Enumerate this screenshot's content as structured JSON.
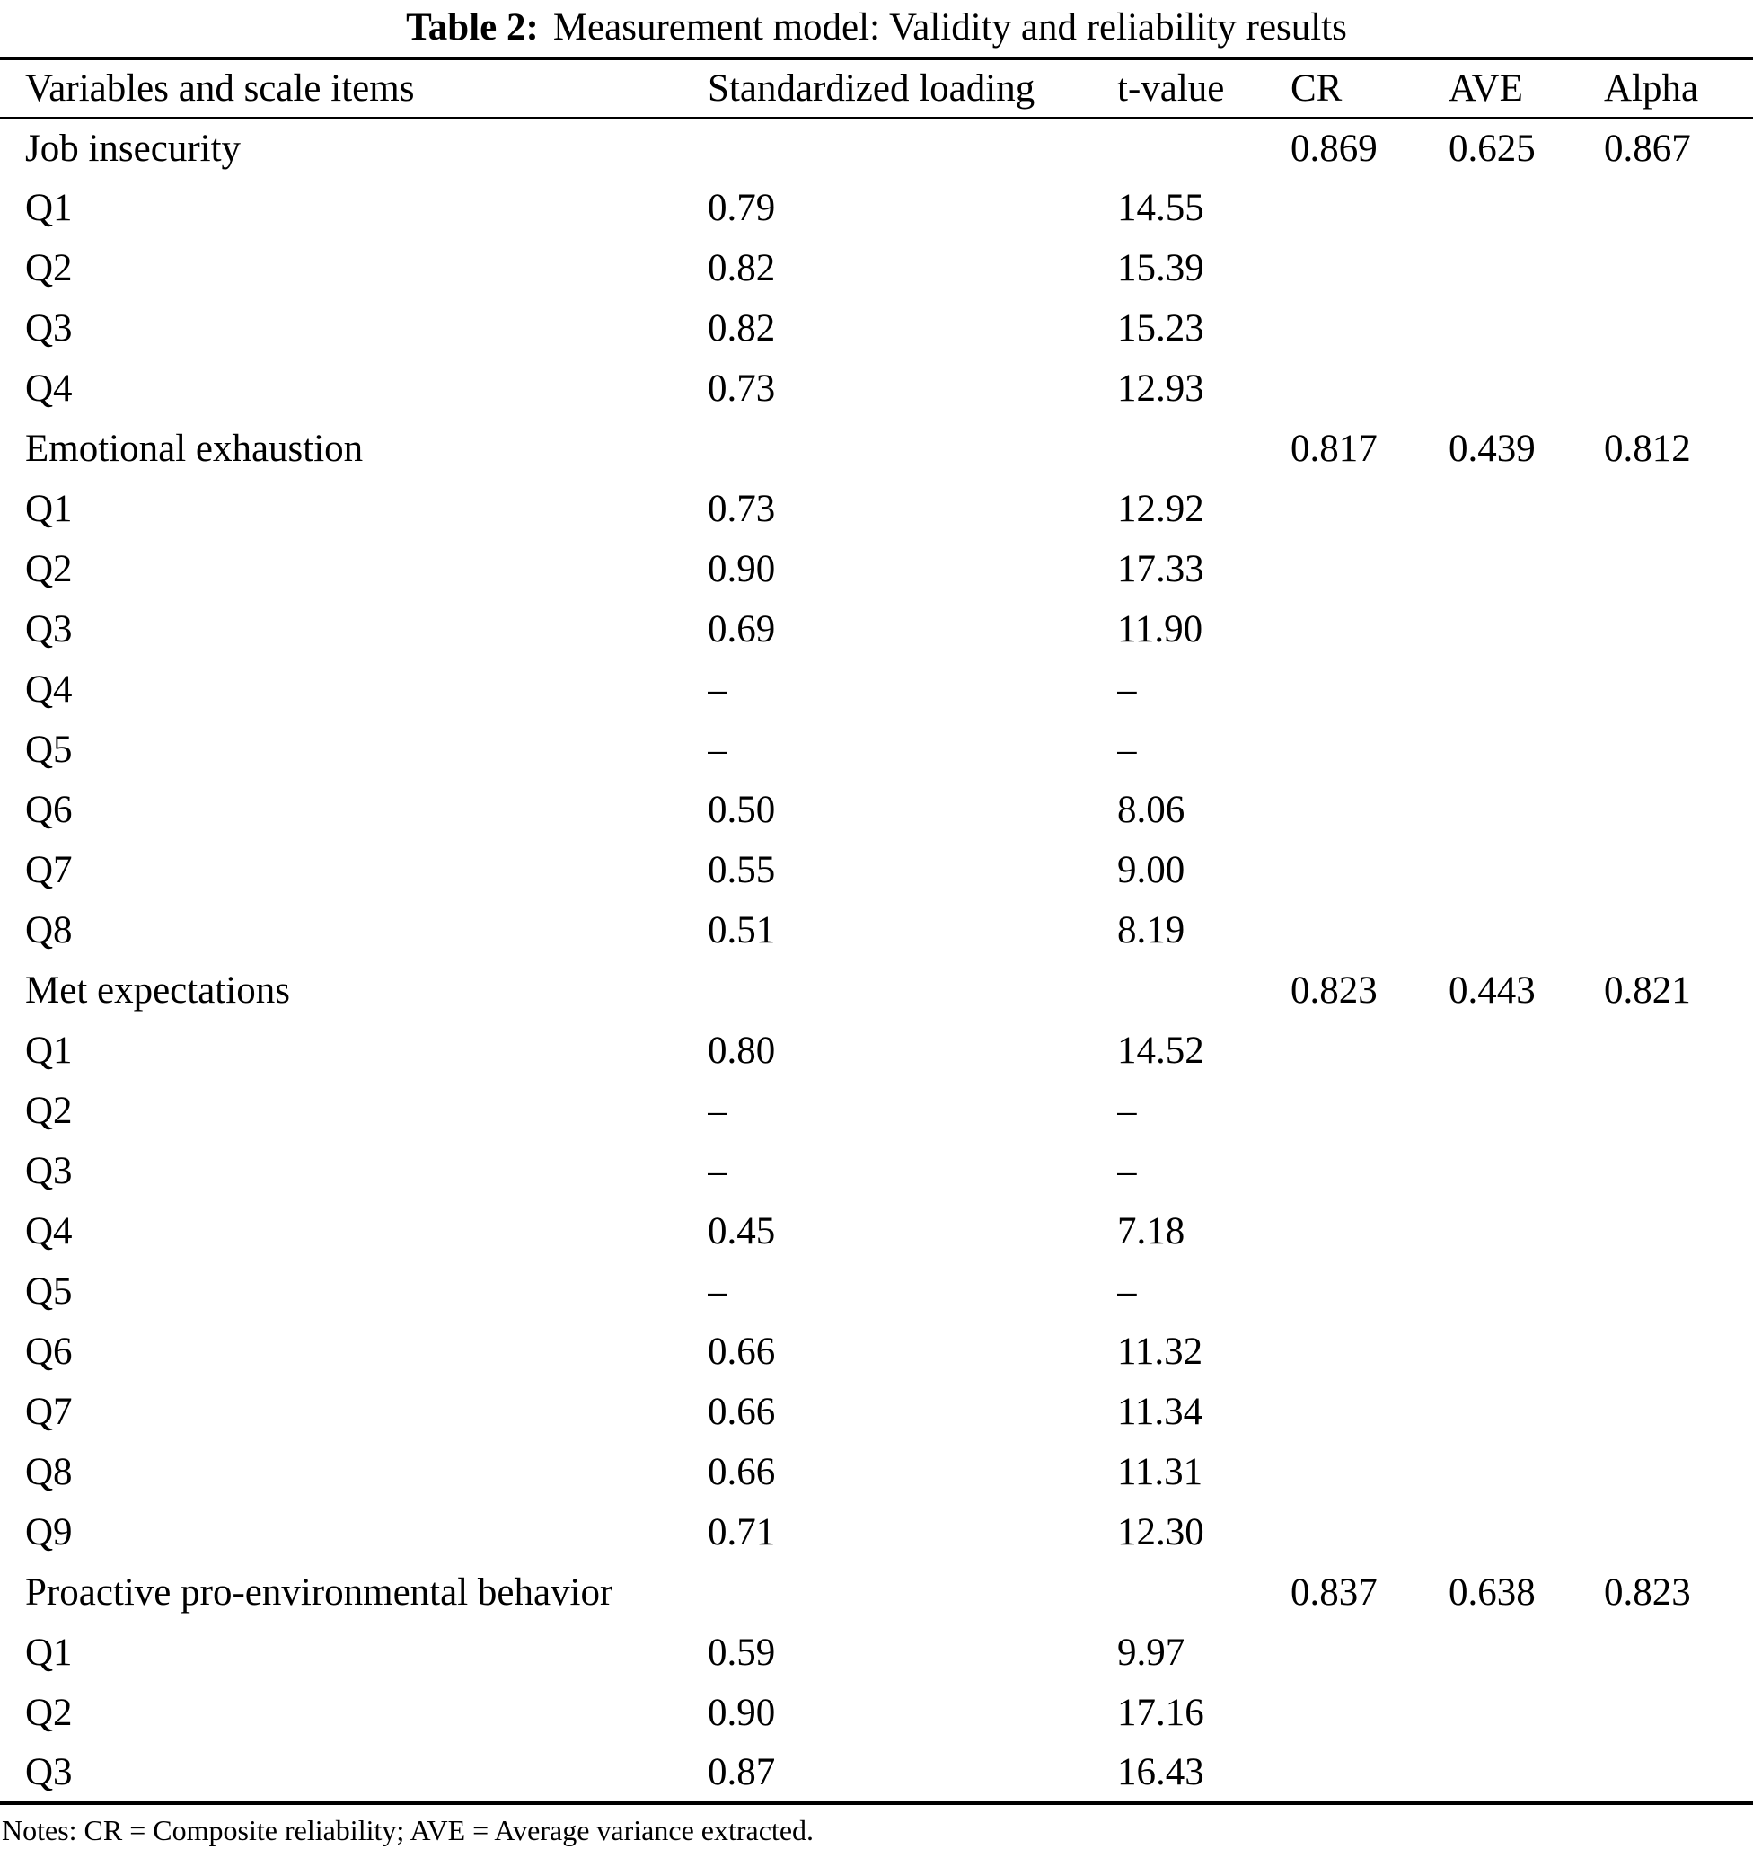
{
  "title": {
    "label": "Table 2:",
    "caption": "Measurement model: Validity and reliability results"
  },
  "table": {
    "columns": [
      "Variables and scale items",
      "Standardized loading",
      "t-value",
      "CR",
      "AVE",
      "Alpha"
    ],
    "rows": [
      {
        "item": "Job insecurity",
        "section": true,
        "loading": "",
        "t_value": "",
        "cr": "0.869",
        "ave": "0.625",
        "alpha": "0.867"
      },
      {
        "item": "Q1",
        "section": false,
        "loading": "0.79",
        "t_value": "14.55",
        "cr": "",
        "ave": "",
        "alpha": ""
      },
      {
        "item": "Q2",
        "section": false,
        "loading": "0.82",
        "t_value": "15.39",
        "cr": "",
        "ave": "",
        "alpha": ""
      },
      {
        "item": "Q3",
        "section": false,
        "loading": "0.82",
        "t_value": "15.23",
        "cr": "",
        "ave": "",
        "alpha": ""
      },
      {
        "item": "Q4",
        "section": false,
        "loading": "0.73",
        "t_value": "12.93",
        "cr": "",
        "ave": "",
        "alpha": ""
      },
      {
        "item": "Emotional exhaustion",
        "section": true,
        "loading": "",
        "t_value": "",
        "cr": "0.817",
        "ave": "0.439",
        "alpha": "0.812"
      },
      {
        "item": "Q1",
        "section": false,
        "loading": "0.73",
        "t_value": "12.92",
        "cr": "",
        "ave": "",
        "alpha": ""
      },
      {
        "item": "Q2",
        "section": false,
        "loading": "0.90",
        "t_value": "17.33",
        "cr": "",
        "ave": "",
        "alpha": ""
      },
      {
        "item": "Q3",
        "section": false,
        "loading": "0.69",
        "t_value": "11.90",
        "cr": "",
        "ave": "",
        "alpha": ""
      },
      {
        "item": "Q4",
        "section": false,
        "loading": "–",
        "t_value": "–",
        "cr": "",
        "ave": "",
        "alpha": ""
      },
      {
        "item": "Q5",
        "section": false,
        "loading": "–",
        "t_value": "–",
        "cr": "",
        "ave": "",
        "alpha": ""
      },
      {
        "item": "Q6",
        "section": false,
        "loading": "0.50",
        "t_value": "8.06",
        "cr": "",
        "ave": "",
        "alpha": ""
      },
      {
        "item": "Q7",
        "section": false,
        "loading": "0.55",
        "t_value": "9.00",
        "cr": "",
        "ave": "",
        "alpha": ""
      },
      {
        "item": "Q8",
        "section": false,
        "loading": "0.51",
        "t_value": "8.19",
        "cr": "",
        "ave": "",
        "alpha": ""
      },
      {
        "item": "Met expectations",
        "section": true,
        "loading": "",
        "t_value": "",
        "cr": "0.823",
        "ave": "0.443",
        "alpha": "0.821"
      },
      {
        "item": "Q1",
        "section": false,
        "loading": "0.80",
        "t_value": "14.52",
        "cr": "",
        "ave": "",
        "alpha": ""
      },
      {
        "item": "Q2",
        "section": false,
        "loading": "–",
        "t_value": "–",
        "cr": "",
        "ave": "",
        "alpha": ""
      },
      {
        "item": "Q3",
        "section": false,
        "loading": "–",
        "t_value": "–",
        "cr": "",
        "ave": "",
        "alpha": ""
      },
      {
        "item": "Q4",
        "section": false,
        "loading": "0.45",
        "t_value": "7.18",
        "cr": "",
        "ave": "",
        "alpha": ""
      },
      {
        "item": "Q5",
        "section": false,
        "loading": "–",
        "t_value": "–",
        "cr": "",
        "ave": "",
        "alpha": ""
      },
      {
        "item": "Q6",
        "section": false,
        "loading": "0.66",
        "t_value": "11.32",
        "cr": "",
        "ave": "",
        "alpha": ""
      },
      {
        "item": "Q7",
        "section": false,
        "loading": "0.66",
        "t_value": "11.34",
        "cr": "",
        "ave": "",
        "alpha": ""
      },
      {
        "item": "Q8",
        "section": false,
        "loading": "0.66",
        "t_value": "11.31",
        "cr": "",
        "ave": "",
        "alpha": ""
      },
      {
        "item": "Q9",
        "section": false,
        "loading": "0.71",
        "t_value": "12.30",
        "cr": "",
        "ave": "",
        "alpha": ""
      },
      {
        "item": "Proactive pro-environmental behavior",
        "section": true,
        "loading": "",
        "t_value": "",
        "cr": "0.837",
        "ave": "0.638",
        "alpha": "0.823"
      },
      {
        "item": "Q1",
        "section": false,
        "loading": "0.59",
        "t_value": "9.97",
        "cr": "",
        "ave": "",
        "alpha": ""
      },
      {
        "item": "Q2",
        "section": false,
        "loading": "0.90",
        "t_value": "17.16",
        "cr": "",
        "ave": "",
        "alpha": ""
      },
      {
        "item": "Q3",
        "section": false,
        "loading": "0.87",
        "t_value": "16.43",
        "cr": "",
        "ave": "",
        "alpha": ""
      }
    ]
  },
  "notes": "Notes: CR = Composite reliability; AVE = Average variance extracted.",
  "colors": {
    "text": "#000000",
    "background": "#ffffff",
    "rule": "#000000"
  }
}
